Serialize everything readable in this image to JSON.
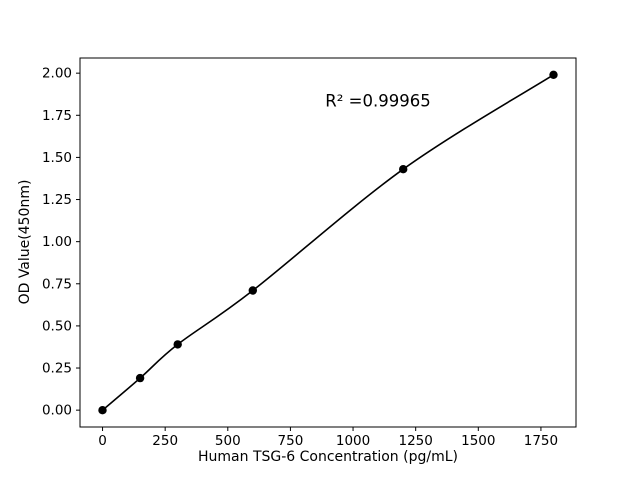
{
  "chart_data": {
    "type": "scatter",
    "x": [
      0,
      150,
      300,
      600,
      1200,
      1800
    ],
    "y": [
      0.0,
      0.19,
      0.39,
      0.71,
      1.43,
      1.99
    ],
    "title": "",
    "xlabel": "Human TSG-6 Concentration (pg/mL)",
    "ylabel": "OD Value(450nm)",
    "annotation": "R² =0.99965",
    "xlim": [
      -90,
      1890
    ],
    "ylim": [
      -0.1,
      2.09
    ],
    "xticks": [
      0,
      250,
      500,
      750,
      1000,
      1250,
      1500,
      1750
    ],
    "yticks": [
      0.0,
      0.25,
      0.5,
      0.75,
      1.0,
      1.25,
      1.5,
      1.75,
      2.0
    ],
    "grid": false,
    "legend": "none",
    "line": true,
    "line_color": "#000000",
    "marker_color": "#000000",
    "background": "#ffffff"
  }
}
